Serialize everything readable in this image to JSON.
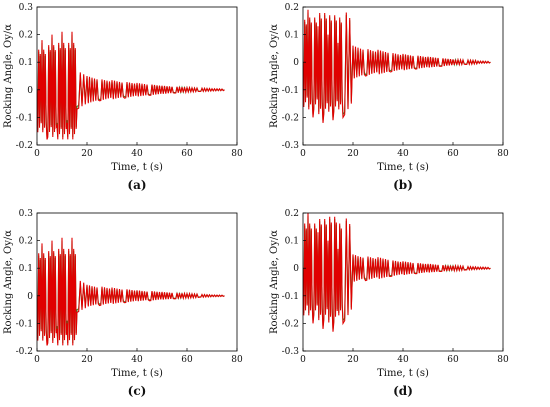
{
  "chart_data": [
    {
      "type": "line",
      "caption": "(a)",
      "xlabel": "Time, t (s)",
      "ylabel": "Rocking Angle, Oy/α",
      "xlim": [
        0,
        80
      ],
      "ylim": [
        -0.2,
        0.3
      ],
      "xticks": [
        "0",
        "20",
        "40",
        "60",
        "80"
      ],
      "yticks": [
        "-0.2",
        "-0.1",
        "0",
        "0.1",
        "0.2",
        "0.3"
      ],
      "series": [
        {
          "color": "#e00000",
          "x": [
            0,
            2,
            4,
            6,
            8,
            10,
            12,
            14,
            16,
            20,
            25,
            30,
            35,
            40,
            45,
            50,
            55,
            60,
            65,
            70,
            75
          ],
          "y": [
            0,
            0.18,
            -0.18,
            0.2,
            -0.13,
            0.21,
            -0.12,
            0.21,
            -0.07,
            0.05,
            -0.04,
            0.035,
            -0.03,
            0.025,
            -0.02,
            0.015,
            -0.012,
            0.008,
            -0.006,
            0.004,
            0
          ]
        },
        {
          "color": "#2e8b2e",
          "x": [
            0,
            2,
            4,
            6,
            8,
            10,
            12,
            14,
            16,
            20,
            25,
            30,
            35,
            40,
            45,
            50,
            55,
            60,
            65,
            70,
            75
          ],
          "y": [
            0,
            0.17,
            -0.17,
            0.19,
            -0.12,
            0.2,
            -0.11,
            0.2,
            -0.06,
            0.045,
            -0.035,
            0.03,
            -0.025,
            0.02,
            -0.018,
            0.013,
            -0.01,
            0.007,
            -0.005,
            0.003,
            0
          ]
        }
      ]
    },
    {
      "type": "line",
      "caption": "(b)",
      "xlabel": "Time, t (s)",
      "ylabel": "Rocking Angle, Oy/α",
      "xlim": [
        0,
        80
      ],
      "ylim": [
        -0.3,
        0.2
      ],
      "xticks": [
        "0",
        "20",
        "40",
        "60",
        "80"
      ],
      "yticks": [
        "-0.3",
        "-0.2",
        "-0.1",
        "0",
        "0.1",
        "0.2"
      ],
      "series": [
        {
          "color": "#e00000",
          "x": [
            0,
            2,
            4,
            6,
            8,
            10,
            12,
            14,
            16,
            20,
            25,
            30,
            35,
            40,
            45,
            50,
            55,
            60,
            65,
            70,
            75
          ],
          "y": [
            0,
            0.19,
            -0.2,
            0.13,
            -0.22,
            0.1,
            -0.21,
            0.07,
            -0.2,
            0.06,
            -0.05,
            0.045,
            -0.035,
            0.03,
            -0.025,
            0.02,
            -0.015,
            0.01,
            -0.008,
            0.004,
            0
          ]
        },
        {
          "color": "#2e8b2e",
          "x": [
            0,
            2,
            4,
            6,
            8,
            10,
            12,
            14,
            16,
            20,
            25,
            30,
            35,
            40,
            45,
            50,
            55,
            60,
            65,
            70,
            75
          ],
          "y": [
            0,
            0.18,
            -0.19,
            0.12,
            -0.21,
            0.09,
            -0.2,
            0.06,
            -0.19,
            0.05,
            -0.045,
            0.04,
            -0.03,
            0.027,
            -0.022,
            0.018,
            -0.013,
            0.009,
            -0.007,
            0.003,
            0
          ]
        }
      ]
    },
    {
      "type": "line",
      "caption": "(c)",
      "xlabel": "Time, t (s)",
      "ylabel": "Rocking Angle, Oy/α",
      "xlim": [
        0,
        80
      ],
      "ylim": [
        -0.2,
        0.3
      ],
      "xticks": [
        "0",
        "20",
        "40",
        "60",
        "80"
      ],
      "yticks": [
        "-0.2",
        "-0.1",
        "0",
        "0.1",
        "0.2",
        "0.3"
      ],
      "series": [
        {
          "color": "#e00000",
          "x": [
            0,
            2,
            4,
            6,
            8,
            10,
            12,
            14,
            16,
            20,
            25,
            30,
            35,
            40,
            45,
            50,
            55,
            60,
            65,
            70,
            75
          ],
          "y": [
            0,
            0.19,
            -0.18,
            0.2,
            -0.12,
            0.21,
            -0.1,
            0.21,
            -0.06,
            0.04,
            -0.035,
            0.03,
            -0.025,
            0.02,
            -0.018,
            0.014,
            -0.011,
            0.008,
            -0.005,
            0.003,
            0
          ]
        },
        {
          "color": "#2e8b2e",
          "x": [
            0,
            2,
            4,
            6,
            8,
            10,
            12,
            14,
            16,
            20,
            25,
            30,
            35,
            40,
            45,
            50,
            55,
            60,
            65,
            70,
            75
          ],
          "y": [
            0,
            0.18,
            -0.17,
            0.19,
            -0.11,
            0.2,
            -0.09,
            0.2,
            -0.05,
            0.035,
            -0.03,
            0.025,
            -0.022,
            0.018,
            -0.015,
            0.012,
            -0.009,
            0.007,
            -0.004,
            0.002,
            0
          ]
        }
      ]
    },
    {
      "type": "line",
      "caption": "(d)",
      "xlabel": "Time, t (s)",
      "ylabel": "Rocking Angle, Oy/α",
      "xlim": [
        0,
        80
      ],
      "ylim": [
        -0.3,
        0.2
      ],
      "xticks": [
        "0",
        "20",
        "40",
        "60",
        "80"
      ],
      "yticks": [
        "-0.3",
        "-0.2",
        "-0.1",
        "0",
        "0.1",
        "0.2"
      ],
      "series": [
        {
          "color": "#e00000",
          "x": [
            0,
            2,
            4,
            6,
            8,
            10,
            12,
            14,
            16,
            20,
            25,
            30,
            35,
            40,
            45,
            50,
            55,
            60,
            65,
            70,
            75
          ],
          "y": [
            0,
            0.2,
            -0.2,
            0.13,
            -0.22,
            0.1,
            -0.23,
            0.07,
            -0.2,
            0.05,
            -0.045,
            0.04,
            -0.03,
            0.025,
            -0.02,
            0.016,
            -0.012,
            0.009,
            -0.006,
            0.004,
            0
          ]
        },
        {
          "color": "#2e8b2e",
          "x": [
            0,
            2,
            4,
            6,
            8,
            10,
            12,
            14,
            16,
            20,
            25,
            30,
            35,
            40,
            45,
            50,
            55,
            60,
            65,
            70,
            75
          ],
          "y": [
            0,
            0.19,
            -0.19,
            0.12,
            -0.21,
            0.09,
            -0.22,
            0.06,
            -0.19,
            0.045,
            -0.04,
            0.035,
            -0.027,
            0.022,
            -0.018,
            0.014,
            -0.01,
            0.008,
            -0.005,
            0.003,
            0
          ]
        }
      ]
    }
  ]
}
